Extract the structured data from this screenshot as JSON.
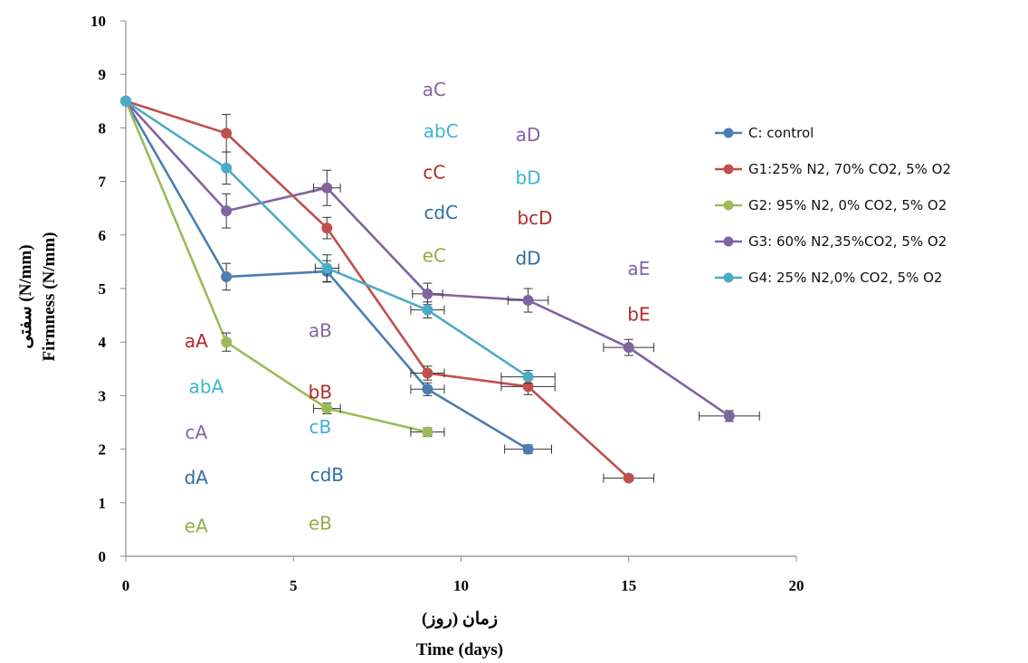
{
  "chart_data": {
    "type": "line",
    "xlabel_fa": "زمان (روز)",
    "xlabel": "Time (days)",
    "ylabel_fa": "سفتی (N/mm)",
    "ylabel": "Firmness  (N/mm)",
    "xlim": [
      0,
      20
    ],
    "ylim": [
      0,
      10
    ],
    "xticks": [
      0,
      5,
      10,
      15,
      20
    ],
    "yticks": [
      0,
      1,
      2,
      3,
      4,
      5,
      6,
      7,
      8,
      9,
      10
    ],
    "grid": false,
    "legend_position": "right",
    "error_bars": true,
    "series": [
      {
        "name": "C: control",
        "color": "#4a7eb1",
        "x": [
          0,
          3,
          6,
          9,
          12
        ],
        "y": [
          8.5,
          5.22,
          5.32,
          3.12,
          2.0
        ],
        "yerr": [
          0,
          0.25,
          0.2,
          0.12,
          0.08
        ],
        "xerr": [
          0,
          0,
          0,
          0.5,
          0.7
        ]
      },
      {
        "name": "G1:25% N2, 70% CO2, 5% O2",
        "color": "#c0504d",
        "x": [
          0,
          3,
          6,
          9,
          12,
          15
        ],
        "y": [
          8.5,
          7.9,
          6.13,
          3.42,
          3.17,
          1.46
        ],
        "yerr": [
          0,
          0.35,
          0.2,
          0.13,
          0.15,
          0.05
        ],
        "xerr": [
          0,
          0,
          0,
          0.5,
          0.8,
          0.75
        ]
      },
      {
        "name": "G2: 95% N2, 0% CO2, 5% O2",
        "color": "#9bbb59",
        "x": [
          0,
          3,
          6,
          9
        ],
        "y": [
          8.5,
          4.0,
          2.76,
          2.32
        ],
        "yerr": [
          0,
          0.17,
          0.1,
          0.08
        ],
        "xerr": [
          0,
          0,
          0.4,
          0.5
        ]
      },
      {
        "name": "G3: 60% N2,35%CO2, 5% O2",
        "color": "#8064a2",
        "x": [
          0,
          3,
          6,
          9,
          12,
          15,
          18
        ],
        "y": [
          8.5,
          6.45,
          6.88,
          4.9,
          4.78,
          3.9,
          2.62
        ],
        "yerr": [
          0,
          0.32,
          0.33,
          0.2,
          0.22,
          0.15,
          0.1
        ],
        "xerr": [
          0,
          0,
          0.4,
          0.45,
          0.6,
          0.75,
          0.9
        ]
      },
      {
        "name": "G4: 25% N2,0% CO2, 5% O2",
        "color": "#4bacc6",
        "x": [
          0,
          3,
          6,
          9,
          12
        ],
        "y": [
          8.5,
          7.25,
          5.38,
          4.6,
          3.35
        ],
        "yerr": [
          0,
          0.3,
          0.25,
          0.15,
          0.12
        ],
        "xerr": [
          0,
          0,
          0.35,
          0.5,
          0.8
        ]
      }
    ],
    "annotations": [
      {
        "text": "aA",
        "x": 2.1,
        "y": 3.9,
        "color": "#b22a2a"
      },
      {
        "text": "abA",
        "x": 2.4,
        "y": 3.05,
        "color": "#3cb4d1"
      },
      {
        "text": "cA",
        "x": 2.1,
        "y": 2.2,
        "color": "#8064a2"
      },
      {
        "text": "dA",
        "x": 2.1,
        "y": 1.35,
        "color": "#2f6e9e"
      },
      {
        "text": "eA",
        "x": 2.1,
        "y": 0.45,
        "color": "#8fae45"
      },
      {
        "text": "aB",
        "x": 5.8,
        "y": 4.1,
        "color": "#8064a2"
      },
      {
        "text": "bB",
        "x": 5.8,
        "y": 2.95,
        "color": "#b22a2a"
      },
      {
        "text": "cB",
        "x": 5.8,
        "y": 2.3,
        "color": "#3cb4d1"
      },
      {
        "text": "cdB",
        "x": 6.0,
        "y": 1.4,
        "color": "#2f6e9e"
      },
      {
        "text": "eB",
        "x": 5.8,
        "y": 0.5,
        "color": "#8fae45"
      },
      {
        "text": "aC",
        "x": 9.2,
        "y": 8.6,
        "color": "#8064a2"
      },
      {
        "text": "abC",
        "x": 9.4,
        "y": 7.82,
        "color": "#3cb4d1"
      },
      {
        "text": "cC",
        "x": 9.2,
        "y": 7.05,
        "color": "#b22a2a"
      },
      {
        "text": "cdC",
        "x": 9.4,
        "y": 6.3,
        "color": "#2f6e9e"
      },
      {
        "text": "eC",
        "x": 9.2,
        "y": 5.5,
        "color": "#8fae45"
      },
      {
        "text": "aD",
        "x": 12.0,
        "y": 7.75,
        "color": "#8064a2"
      },
      {
        "text": "bD",
        "x": 12.0,
        "y": 6.95,
        "color": "#3cb4d1"
      },
      {
        "text": "bcD",
        "x": 12.2,
        "y": 6.2,
        "color": "#b22a2a"
      },
      {
        "text": "dD",
        "x": 12.0,
        "y": 5.45,
        "color": "#2f6e9e"
      },
      {
        "text": "aE",
        "x": 15.3,
        "y": 5.25,
        "color": "#8064a2"
      },
      {
        "text": "bE",
        "x": 15.3,
        "y": 4.4,
        "color": "#b22a2a"
      }
    ]
  }
}
